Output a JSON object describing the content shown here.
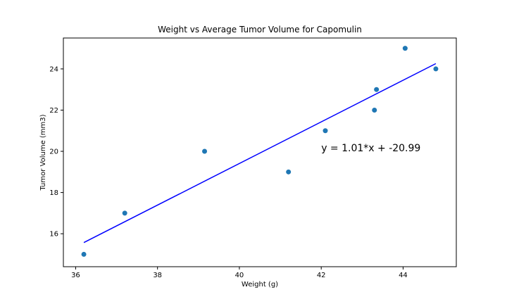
{
  "chart_data": {
    "type": "scatter",
    "title": "Weight vs Average Tumor Volume for Capomulin",
    "xlabel": "Weight (g)",
    "ylabel": "Tumor Volume (mm3)",
    "xlim": [
      35.7,
      45.3
    ],
    "ylim": [
      14.4,
      25.5
    ],
    "xticks": [
      36,
      38,
      40,
      42,
      44
    ],
    "yticks": [
      16,
      18,
      20,
      22,
      24
    ],
    "grid": false,
    "colors": {
      "points": "#1f77b4",
      "regression": "#0000ff"
    },
    "points": [
      {
        "x": 36.2,
        "y": 15.0
      },
      {
        "x": 37.2,
        "y": 17.0
      },
      {
        "x": 39.15,
        "y": 20.0
      },
      {
        "x": 41.2,
        "y": 19.0
      },
      {
        "x": 42.1,
        "y": 21.0
      },
      {
        "x": 43.3,
        "y": 22.0
      },
      {
        "x": 43.35,
        "y": 23.0
      },
      {
        "x": 44.05,
        "y": 25.0
      },
      {
        "x": 44.8,
        "y": 24.0
      }
    ],
    "regression": {
      "slope": 1.01,
      "intercept": -20.99,
      "x_start": 36.2,
      "x_end": 44.8,
      "equation_label": "y = 1.01*x + -20.99",
      "label_anchor": {
        "x": 42.0,
        "y": 20.0
      }
    }
  }
}
